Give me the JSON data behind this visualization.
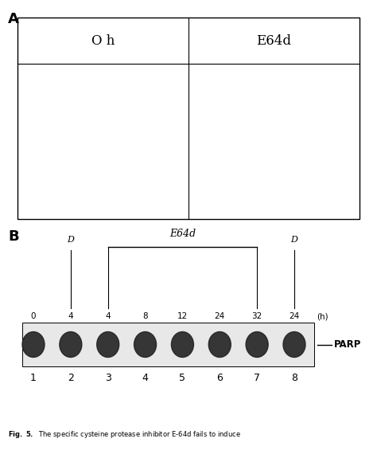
{
  "panel_a_label": "A",
  "panel_b_label": "B",
  "col1_label": "O h",
  "col2_label": "E64d",
  "lane_time_labels": [
    "0",
    "4",
    "4",
    "8",
    "12",
    "24",
    "32",
    "24",
    "(h)"
  ],
  "lane_numbers": [
    "1",
    "2",
    "3",
    "4",
    "5",
    "6",
    "7",
    "8"
  ],
  "parp_label": "PARP",
  "caption": "Fig. 5.",
  "caption_rest": "  The specific cysteine protease inhibitor E-64d fails to induce",
  "white": "#ffffff",
  "black": "#000000",
  "blot_bg": "#e8e8e8",
  "band_color": "#222222",
  "cells_left": [
    [
      0.48,
      0.78,
      0.1,
      0.085,
      0.65,
      10
    ],
    [
      0.4,
      0.63,
      0.095,
      0.082,
      0.55,
      -8
    ],
    [
      0.58,
      0.6,
      0.13,
      0.11,
      0.85,
      5
    ],
    [
      0.37,
      0.46,
      0.082,
      0.072,
      0.5,
      18
    ],
    [
      0.52,
      0.43,
      0.085,
      0.075,
      0.52,
      -5
    ],
    [
      0.3,
      0.28,
      0.078,
      0.068,
      0.48,
      12
    ]
  ],
  "cells_right": [
    [
      0.28,
      0.74,
      0.11,
      0.095,
      0.8,
      3
    ],
    [
      0.55,
      0.76,
      0.12,
      0.105,
      0.85,
      -3
    ],
    [
      0.78,
      0.72,
      0.11,
      0.095,
      0.8,
      8
    ],
    [
      0.2,
      0.52,
      0.095,
      0.085,
      0.75,
      -6
    ],
    [
      0.47,
      0.5,
      0.115,
      0.1,
      0.83,
      2
    ],
    [
      0.72,
      0.45,
      0.11,
      0.095,
      0.8,
      -2
    ],
    [
      0.38,
      0.3,
      0.095,
      0.085,
      0.75,
      10
    ]
  ]
}
